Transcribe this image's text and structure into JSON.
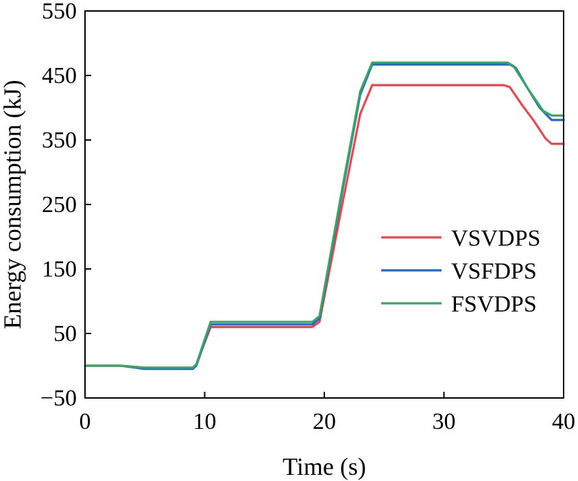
{
  "chart_data": {
    "type": "line",
    "title": "",
    "xlabel": "Time (s)",
    "ylabel": "Energy consumption (kJ)",
    "xlim": [
      0,
      40
    ],
    "ylim": [
      -50,
      550
    ],
    "xticks": [
      0,
      10,
      20,
      30,
      40
    ],
    "yticks": [
      -50,
      50,
      150,
      250,
      350,
      450,
      550
    ],
    "xtick_labels": [
      "0",
      "10",
      "20",
      "30",
      "40"
    ],
    "ytick_labels": [
      "−50",
      "50",
      "150",
      "250",
      "350",
      "450",
      "550"
    ],
    "grid": false,
    "legend_position": "center-right",
    "series": [
      {
        "name": "VSVDPS",
        "color": "#e8474b",
        "points": [
          [
            0,
            0
          ],
          [
            3,
            0
          ],
          [
            5,
            -3
          ],
          [
            9,
            -3
          ],
          [
            9.3,
            2
          ],
          [
            10.5,
            60
          ],
          [
            19,
            60
          ],
          [
            19.6,
            68
          ],
          [
            21.5,
            250
          ],
          [
            23,
            390
          ],
          [
            24,
            435
          ],
          [
            35,
            435
          ],
          [
            35.5,
            432
          ],
          [
            36.5,
            405
          ],
          [
            37.5,
            380
          ],
          [
            38.5,
            352
          ],
          [
            39,
            344
          ],
          [
            40,
            344
          ]
        ]
      },
      {
        "name": "VSFDPS",
        "color": "#1f66d1",
        "points": [
          [
            0,
            0
          ],
          [
            3,
            0
          ],
          [
            5,
            -5
          ],
          [
            9,
            -5
          ],
          [
            9.3,
            0
          ],
          [
            10.5,
            64
          ],
          [
            19,
            64
          ],
          [
            19.6,
            73
          ],
          [
            21.5,
            270
          ],
          [
            23,
            420
          ],
          [
            24,
            467
          ],
          [
            35.5,
            467
          ],
          [
            36,
            462
          ],
          [
            37,
            430
          ],
          [
            38,
            400
          ],
          [
            39,
            381
          ],
          [
            40,
            381
          ]
        ]
      },
      {
        "name": "FSVDPS",
        "color": "#3aa660",
        "points": [
          [
            0,
            0
          ],
          [
            3,
            0
          ],
          [
            5,
            -3
          ],
          [
            9,
            -3
          ],
          [
            9.3,
            2
          ],
          [
            10.5,
            68
          ],
          [
            19,
            68
          ],
          [
            19.6,
            77
          ],
          [
            21.5,
            275
          ],
          [
            23,
            425
          ],
          [
            24,
            470
          ],
          [
            35.3,
            470
          ],
          [
            35.8,
            465
          ],
          [
            37,
            430
          ],
          [
            38.3,
            395
          ],
          [
            39,
            388
          ],
          [
            40,
            388
          ]
        ]
      }
    ]
  }
}
